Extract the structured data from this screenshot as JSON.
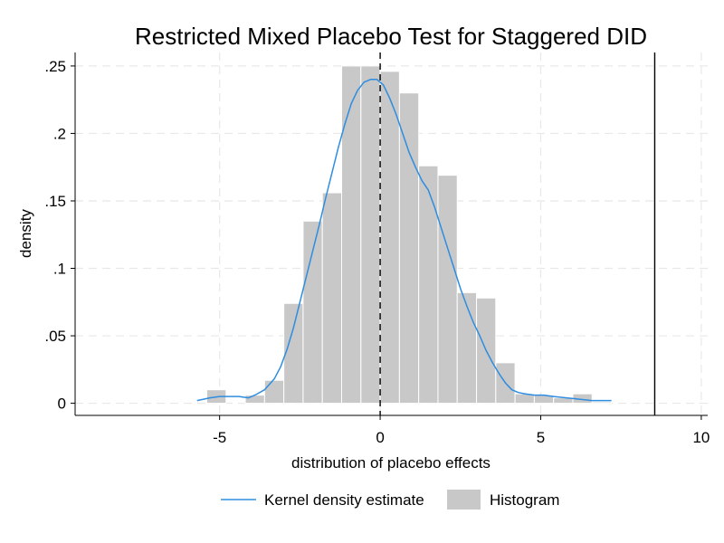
{
  "chart_data": {
    "type": "histogram+line",
    "title": "Restricted Mixed Placebo Test for Staggered DID",
    "xlabel": "distribution of placebo effects",
    "ylabel": "density",
    "xlim": [
      -9.5,
      10.2
    ],
    "ylim": [
      -0.009,
      0.26
    ],
    "x_ticks": [
      -5,
      0,
      5,
      10
    ],
    "x_tick_labels": [
      "-5",
      "0",
      "5",
      "10"
    ],
    "y_ticks": [
      0,
      0.05,
      0.1,
      0.15,
      0.2,
      0.25
    ],
    "y_tick_labels": [
      "0",
      ".05",
      ".1",
      ".15",
      ".2",
      ".25"
    ],
    "grid": true,
    "legend_position": "bottom",
    "colors": {
      "histogram_fill": "#c8c8c8",
      "kde_line": "#2e8de0",
      "reference_lines": "#000000",
      "grid": "#e8e8e8"
    },
    "series": [
      {
        "name": "Histogram",
        "kind": "bar",
        "bin_width": 0.6,
        "bins": [
          {
            "x0": -5.4,
            "x1": -4.8,
            "value": 0.01
          },
          {
            "x0": -4.2,
            "x1": -3.6,
            "value": 0.006
          },
          {
            "x0": -3.6,
            "x1": -3.0,
            "value": 0.017
          },
          {
            "x0": -3.0,
            "x1": -2.4,
            "value": 0.074
          },
          {
            "x0": -2.4,
            "x1": -1.8,
            "value": 0.135
          },
          {
            "x0": -1.8,
            "x1": -1.2,
            "value": 0.156
          },
          {
            "x0": -1.2,
            "x1": -0.6,
            "value": 0.25
          },
          {
            "x0": -0.6,
            "x1": 0.0,
            "value": 0.25
          },
          {
            "x0": 0.0,
            "x1": 0.6,
            "value": 0.246
          },
          {
            "x0": 0.6,
            "x1": 1.2,
            "value": 0.23
          },
          {
            "x0": 1.2,
            "x1": 1.8,
            "value": 0.176
          },
          {
            "x0": 1.8,
            "x1": 2.4,
            "value": 0.169
          },
          {
            "x0": 2.4,
            "x1": 3.0,
            "value": 0.082
          },
          {
            "x0": 3.0,
            "x1": 3.6,
            "value": 0.078
          },
          {
            "x0": 3.6,
            "x1": 4.2,
            "value": 0.03
          },
          {
            "x0": 4.2,
            "x1": 4.8,
            "value": 0.007
          },
          {
            "x0": 4.8,
            "x1": 5.4,
            "value": 0.006
          },
          {
            "x0": 5.4,
            "x1": 6.0,
            "value": 0.004
          },
          {
            "x0": 6.0,
            "x1": 6.6,
            "value": 0.007
          },
          {
            "x0": 6.6,
            "x1": 7.2,
            "value": 0.001
          }
        ]
      },
      {
        "name": "Kernel density estimate",
        "kind": "line",
        "x": [
          -5.7,
          -5.3,
          -5.0,
          -4.7,
          -4.4,
          -4.1,
          -3.9,
          -3.6,
          -3.3,
          -3.1,
          -2.9,
          -2.7,
          -2.5,
          -2.3,
          -2.1,
          -1.9,
          -1.7,
          -1.5,
          -1.3,
          -1.1,
          -0.9,
          -0.7,
          -0.5,
          -0.3,
          -0.1,
          0.1,
          0.3,
          0.5,
          0.7,
          0.9,
          1.1,
          1.3,
          1.5,
          1.7,
          1.9,
          2.1,
          2.3,
          2.5,
          2.7,
          2.9,
          3.1,
          3.3,
          3.5,
          3.7,
          3.9,
          4.1,
          4.3,
          4.5,
          4.8,
          5.1,
          5.4,
          5.8,
          6.2,
          6.6,
          7.2
        ],
        "y": [
          0.002,
          0.004,
          0.005,
          0.005,
          0.005,
          0.004,
          0.006,
          0.01,
          0.018,
          0.027,
          0.04,
          0.056,
          0.075,
          0.094,
          0.113,
          0.132,
          0.152,
          0.171,
          0.19,
          0.207,
          0.222,
          0.232,
          0.238,
          0.24,
          0.24,
          0.236,
          0.226,
          0.214,
          0.2,
          0.186,
          0.175,
          0.165,
          0.158,
          0.145,
          0.13,
          0.115,
          0.1,
          0.085,
          0.072,
          0.06,
          0.05,
          0.039,
          0.03,
          0.022,
          0.015,
          0.01,
          0.008,
          0.007,
          0.006,
          0.006,
          0.005,
          0.004,
          0.003,
          0.002,
          0.002
        ]
      }
    ],
    "reference_lines": [
      {
        "x": 0,
        "style": "dashed"
      },
      {
        "x": 8.55,
        "style": "solid"
      }
    ],
    "legend": [
      {
        "label": "Kernel density estimate",
        "symbol": "line"
      },
      {
        "label": "Histogram",
        "symbol": "box"
      }
    ]
  }
}
